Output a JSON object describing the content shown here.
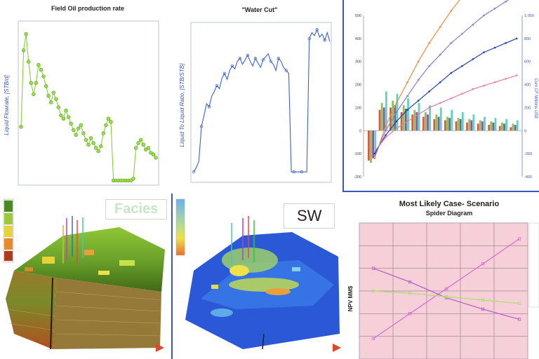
{
  "chart_data": [
    {
      "type": "scatter",
      "title": "Field Oil production rate",
      "ylabel": "Liquid Flowrate, [STB/d]",
      "color": "#7ccd2b",
      "y_values": [
        0.35,
        0.82,
        0.92,
        0.75,
        0.62,
        0.55,
        0.62,
        0.73,
        0.7,
        0.66,
        0.6,
        0.54,
        0.5,
        0.56,
        0.52,
        0.47,
        0.42,
        0.4,
        0.45,
        0.41,
        0.37,
        0.33,
        0.3,
        0.34,
        0.36,
        0.31,
        0.27,
        0.24,
        0.28,
        0.25,
        0.22,
        0.2,
        0.23,
        0.31,
        0.36,
        0.4,
        0.38,
        0.02,
        0.02,
        0.02,
        0.02,
        0.02,
        0.02,
        0.02,
        0.02,
        0.03,
        0.22,
        0.25,
        0.27,
        0.24,
        0.21,
        0.22,
        0.19,
        0.18,
        0.16
      ]
    },
    {
      "type": "line",
      "title": "\"Water Cut\"",
      "ylabel": "Liquid To Liquid Ratio, [STB/STB]",
      "color": "#3b63c9",
      "y_values": [
        0.05,
        0.08,
        0.12,
        0.35,
        0.42,
        0.5,
        0.48,
        0.55,
        0.58,
        0.62,
        0.6,
        0.67,
        0.7,
        0.66,
        0.72,
        0.75,
        0.73,
        0.78,
        0.8,
        0.76,
        0.79,
        0.82,
        0.78,
        0.75,
        0.8,
        0.77,
        0.74,
        0.79,
        0.81,
        0.83,
        0.78,
        0.76,
        0.72,
        0.8,
        0.78,
        0.74,
        0.72,
        0.7,
        0.05,
        0.05,
        0.05,
        0.05,
        0.05,
        0.05,
        0.05,
        0.93,
        0.97,
        0.95,
        0.99,
        0.94,
        0.96,
        0.92,
        0.97,
        0.91
      ]
    },
    {
      "type": "bar",
      "y_ticks_left": [
        "-200",
        "-100",
        "0",
        "100",
        "200",
        "300",
        "400",
        "500"
      ],
      "y_ticks_right": [
        "1,000",
        "800",
        "600",
        "400",
        "200",
        "0",
        "-200",
        "-400"
      ],
      "y2label": "Cum CF Millions US$",
      "series": [
        {
          "color": "#d85b3a",
          "values": [
            -130,
            90,
            100,
            80,
            70,
            60,
            50,
            45,
            40,
            35,
            30,
            25,
            20,
            15
          ]
        },
        {
          "color": "#8bbf5a",
          "values": [
            -140,
            120,
            130,
            110,
            90,
            80,
            70,
            60,
            55,
            50,
            45,
            40,
            35,
            30
          ]
        },
        {
          "color": "#7a5fa0",
          "values": [
            -120,
            100,
            110,
            95,
            80,
            70,
            60,
            55,
            50,
            45,
            40,
            35,
            30,
            25
          ]
        },
        {
          "color": "#5fd3c3",
          "values": [
            -100,
            170,
            160,
            140,
            120,
            110,
            100,
            90,
            80,
            70,
            60,
            55,
            50,
            45
          ]
        }
      ],
      "lines": [
        {
          "color": "#ef8c3a",
          "values": [
            -120,
            20,
            120,
            210,
            300,
            380,
            450,
            520,
            580,
            640,
            690,
            740,
            790,
            830
          ]
        },
        {
          "color": "#8a7bd6",
          "values": [
            -110,
            0,
            80,
            150,
            220,
            280,
            330,
            380,
            420,
            460,
            500,
            530,
            560,
            590
          ]
        },
        {
          "color": "#1f3fb3",
          "values": [
            -100,
            -20,
            40,
            90,
            130,
            170,
            210,
            250,
            280,
            310,
            340,
            360,
            380,
            400
          ]
        },
        {
          "color": "#ef7aa0",
          "values": [
            -90,
            -30,
            10,
            40,
            70,
            100,
            120,
            140,
            160,
            180,
            195,
            210,
            225,
            240
          ]
        }
      ]
    },
    {
      "type": "line",
      "title": "Most Likely Case- Scenario",
      "subtitle": "Spider Diagram",
      "ylabel": "NPV MM$",
      "series": [
        {
          "color": "#d46bd6",
          "x": [
            0,
            1,
            2,
            3,
            4
          ],
          "y": [
            90,
            200,
            310,
            420,
            530
          ],
          "markers": [
            "x",
            "",
            "",
            "",
            ""
          ]
        },
        {
          "color": "#b35bc8",
          "x": [
            0,
            1,
            2,
            3,
            4
          ],
          "y": [
            400,
            340,
            270,
            220,
            175
          ],
          "markers": [
            "x",
            "x",
            "",
            "",
            ""
          ]
        },
        {
          "color": "#a8e06a",
          "x": [
            0,
            1,
            2,
            3,
            4
          ],
          "y": [
            300,
            290,
            275,
            260,
            245
          ],
          "markers": [
            "",
            "",
            "",
            "",
            ""
          ]
        }
      ]
    }
  ],
  "images": [
    {
      "label": "Facies"
    },
    {
      "label": "SW"
    }
  ]
}
